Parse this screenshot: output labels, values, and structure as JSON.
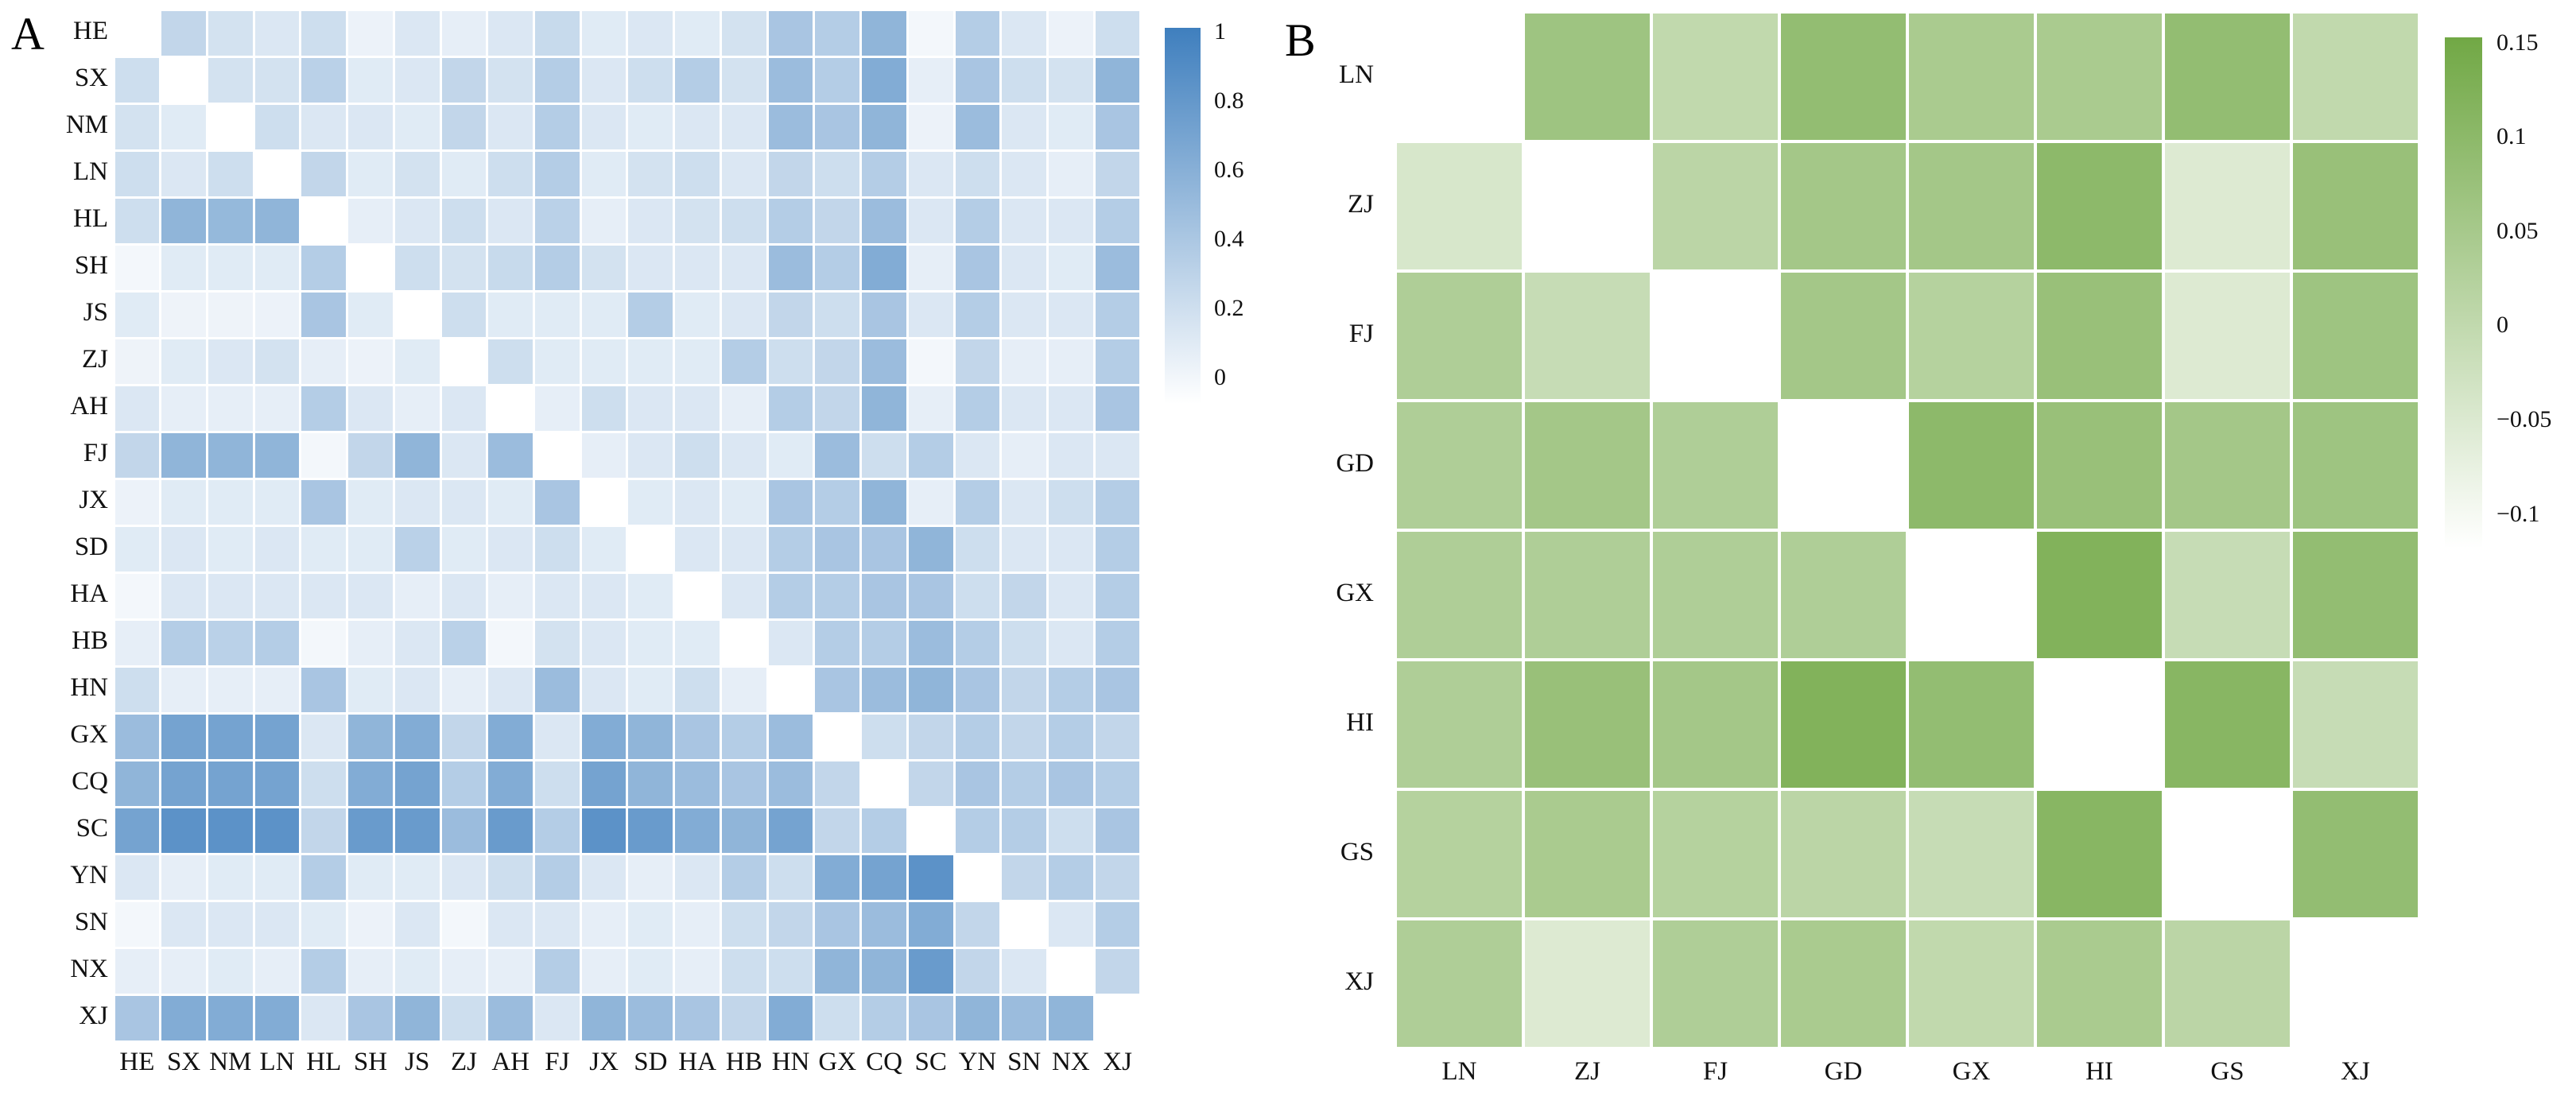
{
  "figure": {
    "background": "#ffffff"
  },
  "chart_data": [
    {
      "type": "heatmap",
      "letter": "A",
      "x_labels": [
        "HE",
        "SX",
        "NM",
        "LN",
        "HL",
        "SH",
        "JS",
        "ZJ",
        "AH",
        "FJ",
        "JX",
        "SD",
        "HA",
        "HB",
        "HN",
        "GX",
        "CQ",
        "SC",
        "YN",
        "SN",
        "NX",
        "XJ"
      ],
      "y_labels": [
        "HE",
        "SX",
        "NM",
        "LN",
        "HL",
        "SH",
        "JS",
        "ZJ",
        "AH",
        "FJ",
        "JX",
        "SD",
        "HA",
        "HB",
        "HN",
        "GX",
        "CQ",
        "SC",
        "YN",
        "SN",
        "NX",
        "XJ"
      ],
      "vmin": 0,
      "vmax": 1,
      "colormap": {
        "min_color": "#ffffff",
        "max_color": "#3f7fbe"
      },
      "colorbar": {
        "side": "right",
        "ticks": [
          "1",
          "0.8",
          "0.6",
          "0.4",
          "0.2",
          "0"
        ],
        "tick_values": [
          1,
          0.8,
          0.6,
          0.4,
          0.2,
          0
        ]
      },
      "diagonal": null,
      "values": [
        [
          null,
          0.32,
          0.23,
          0.19,
          0.26,
          0.1,
          0.19,
          0.13,
          0.19,
          0.29,
          0.16,
          0.19,
          0.16,
          0.23,
          0.45,
          0.39,
          0.58,
          0.06,
          0.39,
          0.19,
          0.1,
          0.26
        ],
        [
          0.26,
          null,
          0.23,
          0.23,
          0.36,
          0.16,
          0.19,
          0.32,
          0.23,
          0.39,
          0.19,
          0.26,
          0.39,
          0.23,
          0.52,
          0.39,
          0.65,
          0.13,
          0.45,
          0.26,
          0.23,
          0.58
        ],
        [
          0.23,
          0.16,
          null,
          0.26,
          0.19,
          0.19,
          0.16,
          0.32,
          0.19,
          0.39,
          0.19,
          0.16,
          0.19,
          0.19,
          0.52,
          0.45,
          0.58,
          0.1,
          0.52,
          0.19,
          0.16,
          0.45
        ],
        [
          0.26,
          0.19,
          0.26,
          null,
          0.32,
          0.16,
          0.23,
          0.16,
          0.26,
          0.39,
          0.16,
          0.23,
          0.26,
          0.19,
          0.32,
          0.26,
          0.39,
          0.19,
          0.26,
          0.19,
          0.13,
          0.32
        ],
        [
          0.26,
          0.58,
          0.55,
          0.58,
          null,
          0.13,
          0.19,
          0.26,
          0.19,
          0.36,
          0.13,
          0.19,
          0.23,
          0.26,
          0.39,
          0.32,
          0.52,
          0.19,
          0.39,
          0.19,
          0.19,
          0.39
        ],
        [
          0.06,
          0.16,
          0.16,
          0.16,
          0.39,
          null,
          0.26,
          0.23,
          0.29,
          0.39,
          0.23,
          0.19,
          0.19,
          0.19,
          0.52,
          0.39,
          0.65,
          0.13,
          0.45,
          0.19,
          0.16,
          0.52
        ],
        [
          0.16,
          0.09,
          0.09,
          0.1,
          0.45,
          0.16,
          null,
          0.26,
          0.16,
          0.16,
          0.16,
          0.39,
          0.16,
          0.19,
          0.32,
          0.26,
          0.45,
          0.19,
          0.39,
          0.19,
          0.19,
          0.39
        ],
        [
          0.09,
          0.16,
          0.19,
          0.23,
          0.13,
          0.1,
          0.16,
          null,
          0.26,
          0.16,
          0.16,
          0.16,
          0.16,
          0.39,
          0.26,
          0.32,
          0.52,
          0.06,
          0.32,
          0.13,
          0.13,
          0.39
        ],
        [
          0.19,
          0.13,
          0.13,
          0.13,
          0.39,
          0.19,
          0.13,
          0.19,
          null,
          0.13,
          0.26,
          0.19,
          0.19,
          0.13,
          0.39,
          0.32,
          0.58,
          0.13,
          0.39,
          0.19,
          0.19,
          0.45
        ],
        [
          0.32,
          0.58,
          0.58,
          0.58,
          0.06,
          0.32,
          0.58,
          0.19,
          0.52,
          null,
          0.13,
          0.19,
          0.26,
          0.19,
          0.16,
          0.52,
          0.26,
          0.39,
          0.19,
          0.13,
          0.19,
          0.19
        ],
        [
          0.1,
          0.16,
          0.16,
          0.16,
          0.45,
          0.16,
          0.19,
          0.19,
          0.16,
          0.45,
          null,
          0.16,
          0.19,
          0.16,
          0.45,
          0.39,
          0.58,
          0.13,
          0.39,
          0.19,
          0.26,
          0.39
        ],
        [
          0.16,
          0.19,
          0.16,
          0.19,
          0.16,
          0.16,
          0.36,
          0.16,
          0.19,
          0.26,
          0.16,
          null,
          0.19,
          0.19,
          0.39,
          0.45,
          0.45,
          0.58,
          0.26,
          0.19,
          0.19,
          0.39
        ],
        [
          0.06,
          0.19,
          0.19,
          0.19,
          0.19,
          0.19,
          0.13,
          0.19,
          0.13,
          0.19,
          0.19,
          0.16,
          null,
          0.19,
          0.39,
          0.39,
          0.45,
          0.45,
          0.26,
          0.32,
          0.19,
          0.39
        ],
        [
          0.13,
          0.39,
          0.36,
          0.39,
          0.06,
          0.13,
          0.19,
          0.36,
          0.06,
          0.23,
          0.19,
          0.16,
          0.16,
          null,
          0.19,
          0.39,
          0.39,
          0.52,
          0.39,
          0.26,
          0.19,
          0.39
        ],
        [
          0.26,
          0.13,
          0.13,
          0.13,
          0.45,
          0.16,
          0.19,
          0.13,
          0.19,
          0.52,
          0.19,
          0.16,
          0.26,
          0.13,
          null,
          0.45,
          0.52,
          0.58,
          0.45,
          0.32,
          0.39,
          0.45
        ],
        [
          0.52,
          0.72,
          0.72,
          0.72,
          0.19,
          0.58,
          0.65,
          0.32,
          0.65,
          0.19,
          0.65,
          0.58,
          0.45,
          0.39,
          0.52,
          null,
          0.26,
          0.32,
          0.39,
          0.32,
          0.39,
          0.32
        ],
        [
          0.58,
          0.72,
          0.72,
          0.72,
          0.26,
          0.65,
          0.72,
          0.39,
          0.65,
          0.26,
          0.72,
          0.58,
          0.52,
          0.45,
          0.52,
          0.32,
          null,
          0.32,
          0.45,
          0.39,
          0.45,
          0.39
        ],
        [
          0.72,
          0.85,
          0.85,
          0.85,
          0.32,
          0.78,
          0.78,
          0.52,
          0.78,
          0.39,
          0.85,
          0.78,
          0.65,
          0.58,
          0.72,
          0.32,
          0.39,
          null,
          0.39,
          0.39,
          0.26,
          0.45
        ],
        [
          0.19,
          0.13,
          0.16,
          0.16,
          0.39,
          0.16,
          0.16,
          0.19,
          0.26,
          0.39,
          0.19,
          0.13,
          0.19,
          0.39,
          0.26,
          0.65,
          0.72,
          0.85,
          null,
          0.32,
          0.39,
          0.32
        ],
        [
          0.06,
          0.19,
          0.19,
          0.19,
          0.16,
          0.1,
          0.19,
          0.06,
          0.19,
          0.19,
          0.13,
          0.16,
          0.13,
          0.26,
          0.32,
          0.45,
          0.52,
          0.65,
          0.32,
          null,
          0.19,
          0.39
        ],
        [
          0.13,
          0.13,
          0.16,
          0.13,
          0.39,
          0.13,
          0.16,
          0.13,
          0.13,
          0.39,
          0.13,
          0.16,
          0.13,
          0.26,
          0.26,
          0.58,
          0.58,
          0.78,
          0.32,
          0.19,
          null,
          0.32
        ],
        [
          0.45,
          0.65,
          0.65,
          0.65,
          0.19,
          0.45,
          0.58,
          0.26,
          0.52,
          0.19,
          0.58,
          0.52,
          0.45,
          0.32,
          0.65,
          0.26,
          0.39,
          0.45,
          0.58,
          0.52,
          0.58,
          null
        ]
      ]
    },
    {
      "type": "heatmap",
      "letter": "B",
      "x_labels": [
        "LN",
        "ZJ",
        "FJ",
        "GD",
        "GX",
        "HI",
        "GS",
        "XJ"
      ],
      "y_labels": [
        "LN",
        "ZJ",
        "FJ",
        "GD",
        "GX",
        "HI",
        "GS",
        "XJ"
      ],
      "vmin": -0.1,
      "vmax": 0.15,
      "colormap": {
        "min_color": "#ffffff",
        "max_color": "#71a845"
      },
      "colorbar": {
        "side": "right",
        "ticks": [
          "0.15",
          "0.1",
          "0.05",
          "0",
          "−0.05",
          "−0.1"
        ],
        "tick_values": [
          0.15,
          0.1,
          0.05,
          0,
          -0.05,
          -0.1
        ]
      },
      "diagonal": null,
      "values": [
        [
          null,
          0.07,
          0.01,
          0.09,
          0.05,
          0.05,
          0.09,
          0.01
        ],
        [
          -0.03,
          null,
          0.02,
          0.06,
          0.06,
          0.1,
          -0.04,
          0.08
        ],
        [
          0.04,
          0.0,
          null,
          0.06,
          0.03,
          0.08,
          -0.04,
          0.07
        ],
        [
          0.04,
          0.06,
          0.04,
          null,
          0.1,
          0.08,
          0.06,
          0.07
        ],
        [
          0.04,
          0.04,
          0.04,
          0.04,
          null,
          0.12,
          0.0,
          0.09
        ],
        [
          0.04,
          0.08,
          0.06,
          0.12,
          0.09,
          null,
          0.11,
          0.0
        ],
        [
          0.03,
          0.05,
          0.03,
          0.02,
          0.0,
          0.11,
          null,
          0.09
        ],
        [
          0.04,
          -0.04,
          0.04,
          0.05,
          0.01,
          0.05,
          0.02,
          null
        ]
      ]
    }
  ]
}
